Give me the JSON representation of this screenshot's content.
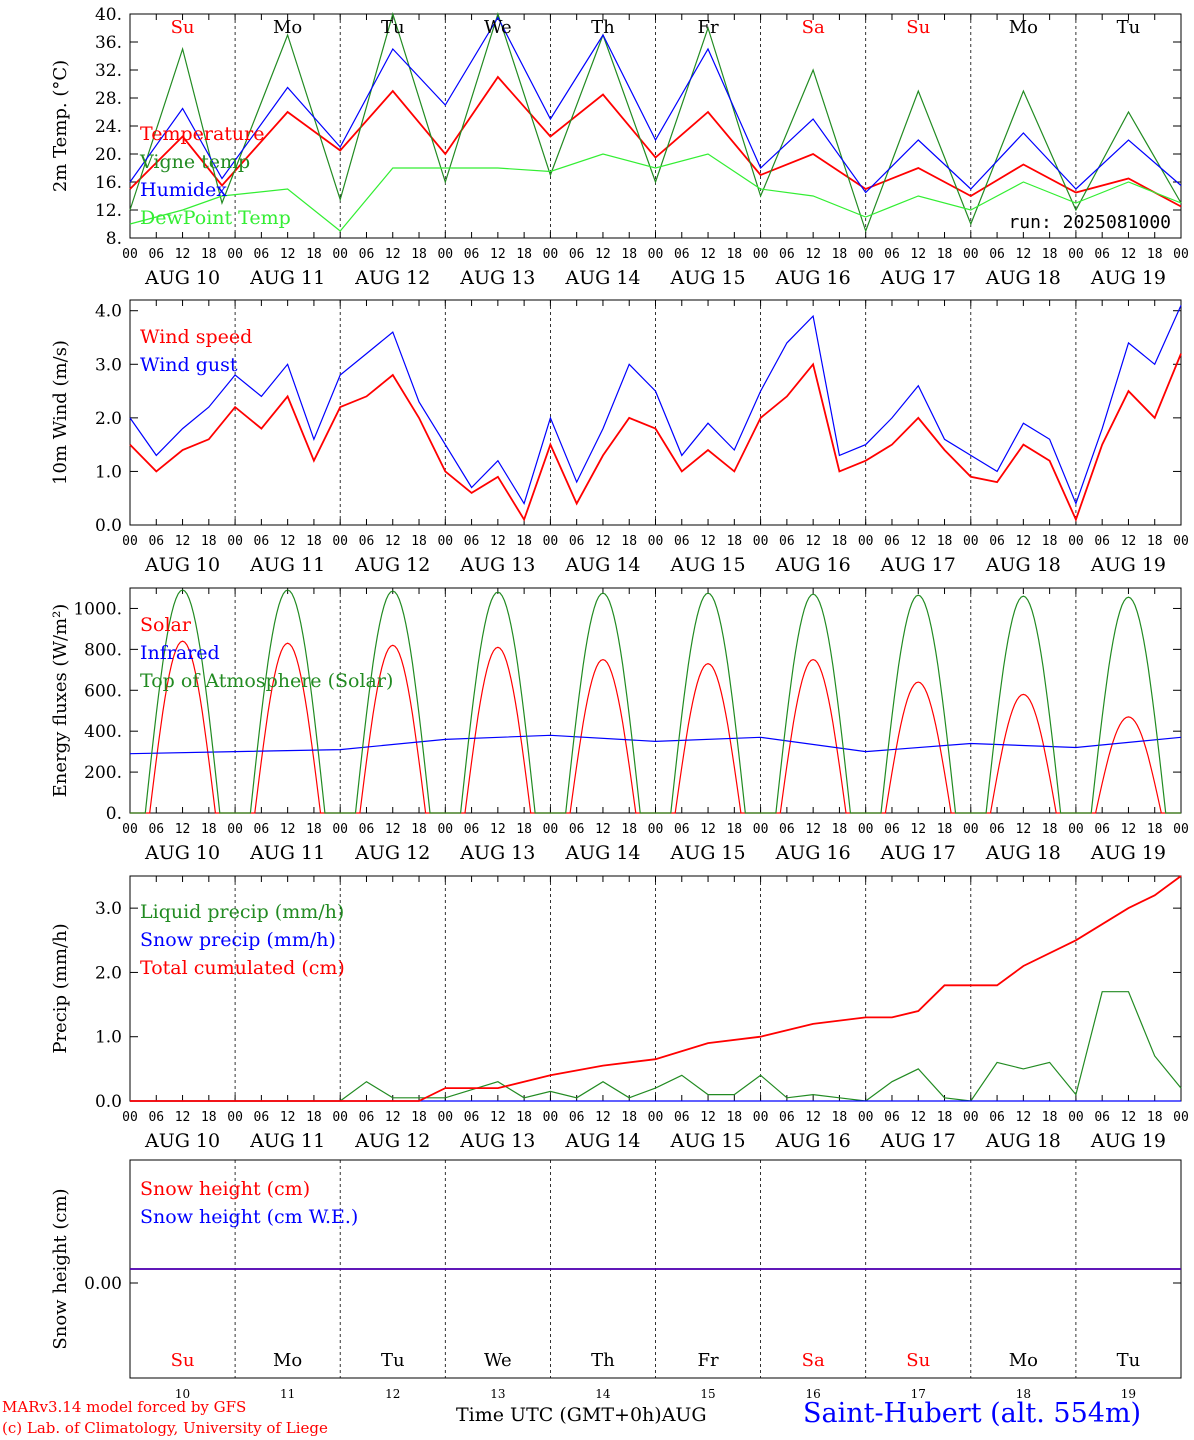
{
  "colors": {
    "red": "#ff0000",
    "green": "#228b22",
    "blue": "#0000ff",
    "lightgreen": "#33ee33",
    "black": "#000000"
  },
  "footer": {
    "credit1": "MARv3.14 model forced by GFS",
    "credit2": "(c) Lab. of Climatology, University of Liege",
    "xlabel": "Time UTC (GMT+0h)AUG",
    "station": "Saint-Hubert (alt. 554m)"
  },
  "chart_data": [
    {
      "type": "line",
      "ylabel": "2m Temp. (°C)",
      "ylim": [
        8,
        40
      ],
      "yticks": [
        "8.",
        "12.",
        "16.",
        "20.",
        "24.",
        "28.",
        "32.",
        "36.",
        "40."
      ],
      "yticks_vals": [
        8,
        12,
        16,
        20,
        24,
        28,
        32,
        36,
        40
      ],
      "run_label": "run: 2025081000",
      "weekdays": [
        "Su",
        "Mo",
        "Tu",
        "We",
        "Th",
        "Fr",
        "Sa",
        "Su",
        "Mo",
        "Tu"
      ],
      "weekday_colors": [
        "red",
        "black",
        "black",
        "black",
        "black",
        "black",
        "red",
        "red",
        "black",
        "black"
      ],
      "hour_ticks": [
        "00",
        "06",
        "12",
        "18"
      ],
      "day_labels": [
        "AUG 10",
        "AUG 11",
        "AUG 12",
        "AUG 13",
        "AUG 14",
        "AUG 15",
        "AUG 16",
        "AUG 17",
        "AUG 18",
        "AUG 19"
      ],
      "series": [
        {
          "name": "Temperature",
          "color": "red",
          "x": [
            0,
            12,
            21,
            36,
            48,
            60,
            72,
            84,
            96,
            108,
            120,
            132,
            144,
            156,
            168,
            180,
            192,
            204,
            216,
            228,
            240
          ],
          "values": [
            15,
            22.5,
            15.5,
            26,
            20.5,
            29,
            20,
            31,
            22.5,
            28.5,
            19.5,
            26,
            17,
            20,
            15,
            18,
            14,
            18.5,
            14.5,
            16.5,
            12.5
          ]
        },
        {
          "name": "Vigne temp",
          "color": "green",
          "x": [
            0,
            12,
            21,
            36,
            48,
            60,
            72,
            84,
            96,
            108,
            120,
            132,
            144,
            156,
            168,
            180,
            192,
            204,
            216,
            228,
            240
          ],
          "values": [
            12,
            35,
            13,
            37,
            13.5,
            40,
            16,
            40,
            17,
            37,
            16,
            38,
            14,
            32,
            9,
            29,
            10,
            29,
            12,
            26,
            13
          ]
        },
        {
          "name": "Humidex",
          "color": "blue",
          "x": [
            0,
            12,
            21,
            36,
            48,
            60,
            72,
            84,
            96,
            108,
            120,
            132,
            144,
            156,
            168,
            180,
            192,
            204,
            216,
            228,
            240
          ],
          "values": [
            16,
            26.5,
            16.5,
            29.5,
            21,
            35,
            27,
            39.5,
            25,
            37,
            22,
            35,
            18,
            25,
            14.5,
            22,
            15,
            23,
            15,
            22,
            15.5
          ]
        },
        {
          "name": "DewPoint Temp",
          "color": "lightgreen",
          "x": [
            0,
            12,
            21,
            36,
            48,
            60,
            72,
            84,
            96,
            108,
            120,
            132,
            144,
            156,
            168,
            180,
            192,
            204,
            216,
            228,
            240
          ],
          "values": [
            10,
            12,
            14,
            15,
            9,
            18,
            18,
            18,
            17.5,
            20,
            18,
            20,
            15,
            14,
            11,
            14,
            12,
            16,
            13,
            16,
            13
          ]
        }
      ]
    },
    {
      "type": "line",
      "ylabel": "10m Wind (m/s)",
      "ylim": [
        0,
        4.2
      ],
      "yticks": [
        "0.0",
        "1.0",
        "2.0",
        "3.0",
        "4.0"
      ],
      "yticks_vals": [
        0,
        1,
        2,
        3,
        4
      ],
      "hour_ticks": [
        "00",
        "06",
        "12",
        "18"
      ],
      "day_labels": [
        "AUG 10",
        "AUG 11",
        "AUG 12",
        "AUG 13",
        "AUG 14",
        "AUG 15",
        "AUG 16",
        "AUG 17",
        "AUG 18",
        "AUG 19"
      ],
      "series": [
        {
          "name": "Wind speed",
          "color": "red",
          "x": [
            0,
            6,
            12,
            18,
            24,
            30,
            36,
            42,
            48,
            54,
            60,
            66,
            72,
            78,
            84,
            90,
            96,
            102,
            108,
            114,
            120,
            126,
            132,
            138,
            144,
            150,
            156,
            162,
            168,
            174,
            180,
            186,
            192,
            198,
            204,
            210,
            216,
            222,
            228,
            234,
            240
          ],
          "values": [
            1.5,
            1.0,
            1.4,
            1.6,
            2.2,
            1.8,
            2.4,
            1.2,
            2.2,
            2.4,
            2.8,
            2.0,
            1.0,
            0.6,
            0.9,
            0.1,
            1.5,
            0.4,
            1.3,
            2.0,
            1.8,
            1.0,
            1.4,
            1.0,
            2.0,
            2.4,
            3.0,
            1.0,
            1.2,
            1.5,
            2.0,
            1.4,
            0.9,
            0.8,
            1.5,
            1.2,
            0.1,
            1.5,
            2.5,
            2.0,
            3.2
          ]
        },
        {
          "name": "Wind gust",
          "color": "blue",
          "x": [
            0,
            6,
            12,
            18,
            24,
            30,
            36,
            42,
            48,
            54,
            60,
            66,
            72,
            78,
            84,
            90,
            96,
            102,
            108,
            114,
            120,
            126,
            132,
            138,
            144,
            150,
            156,
            162,
            168,
            174,
            180,
            186,
            192,
            198,
            204,
            210,
            216,
            222,
            228,
            234,
            240
          ],
          "values": [
            2.0,
            1.3,
            1.8,
            2.2,
            2.8,
            2.4,
            3.0,
            1.6,
            2.8,
            3.2,
            3.6,
            2.3,
            1.5,
            0.7,
            1.2,
            0.4,
            2.0,
            0.8,
            1.8,
            3.0,
            2.5,
            1.3,
            1.9,
            1.4,
            2.5,
            3.4,
            3.9,
            1.3,
            1.5,
            2.0,
            2.6,
            1.6,
            1.3,
            1.0,
            1.9,
            1.6,
            0.4,
            1.8,
            3.4,
            3.0,
            4.1
          ]
        }
      ]
    },
    {
      "type": "line",
      "ylabel": "Energy fluxes (W/m²)",
      "ylim": [
        0,
        1100
      ],
      "yticks": [
        "0.",
        "200.",
        "400.",
        "600.",
        "800.",
        "1000."
      ],
      "yticks_vals": [
        0,
        200,
        400,
        600,
        800,
        1000
      ],
      "hour_ticks": [
        "00",
        "06",
        "12",
        "18"
      ],
      "day_labels": [
        "AUG 10",
        "AUG 11",
        "AUG 12",
        "AUG 13",
        "AUG 14",
        "AUG 15",
        "AUG 16",
        "AUG 17",
        "AUG 18",
        "AUG 19"
      ],
      "series": [
        {
          "name": "Solar",
          "color": "red",
          "daily_peak": [
            840,
            830,
            820,
            810,
            750,
            730,
            750,
            640,
            580,
            470
          ]
        },
        {
          "name": "Infrared",
          "color": "blue",
          "x": [
            0,
            24,
            48,
            72,
            96,
            120,
            144,
            168,
            192,
            216,
            240
          ],
          "values": [
            290,
            300,
            310,
            360,
            380,
            350,
            370,
            300,
            340,
            320,
            370
          ]
        },
        {
          "name": "Top of Atmosphere (Solar)",
          "color": "green",
          "daily_peak": [
            1090,
            1090,
            1085,
            1080,
            1075,
            1075,
            1070,
            1065,
            1060,
            1055
          ]
        }
      ]
    },
    {
      "type": "line",
      "ylabel": "Precip (mm/h)",
      "ylim": [
        0,
        3.5
      ],
      "yticks": [
        "0.0",
        "1.0",
        "2.0",
        "3.0"
      ],
      "yticks_vals": [
        0,
        1,
        2,
        3
      ],
      "hour_ticks": [
        "00",
        "06",
        "12",
        "18"
      ],
      "day_labels": [
        "AUG 10",
        "AUG 11",
        "AUG 12",
        "AUG 13",
        "AUG 14",
        "AUG 15",
        "AUG 16",
        "AUG 17",
        "AUG 18",
        "AUG 19"
      ],
      "series": [
        {
          "name": "Liquid precip (mm/h)",
          "color": "green",
          "x": [
            0,
            48,
            54,
            60,
            66,
            72,
            84,
            90,
            96,
            102,
            108,
            114,
            120,
            126,
            132,
            138,
            144,
            150,
            156,
            162,
            168,
            174,
            180,
            186,
            192,
            198,
            204,
            210,
            216,
            222,
            228,
            234,
            240
          ],
          "values": [
            0,
            0,
            0.3,
            0.05,
            0.05,
            0.05,
            0.3,
            0.05,
            0.15,
            0.05,
            0.3,
            0.05,
            0.2,
            0.4,
            0.1,
            0.1,
            0.4,
            0.05,
            0.1,
            0.05,
            0,
            0.3,
            0.5,
            0.05,
            0,
            0.6,
            0.5,
            0.6,
            0.1,
            1.7,
            1.7,
            0.7,
            0.2
          ]
        },
        {
          "name": "Snow precip (mm/h)",
          "color": "blue",
          "x": [
            0,
            240
          ],
          "values": [
            0,
            0
          ]
        },
        {
          "name": "Total cumulated (cm)",
          "color": "red",
          "x": [
            0,
            66,
            72,
            84,
            96,
            108,
            120,
            132,
            144,
            156,
            168,
            174,
            180,
            186,
            192,
            198,
            204,
            216,
            228,
            234,
            240
          ],
          "values": [
            0,
            0,
            0.2,
            0.2,
            0.4,
            0.55,
            0.65,
            0.9,
            1.0,
            1.2,
            1.3,
            1.3,
            1.4,
            1.8,
            1.8,
            1.8,
            2.1,
            2.5,
            3.0,
            3.2,
            3.5
          ]
        }
      ]
    },
    {
      "type": "line",
      "ylabel": "Snow height (cm)",
      "yticks": [
        "0.00"
      ],
      "weekdays": [
        "Su",
        "Mo",
        "Tu",
        "We",
        "Th",
        "Fr",
        "Sa",
        "Su",
        "Mo",
        "Tu"
      ],
      "weekday_colors": [
        "red",
        "black",
        "black",
        "black",
        "black",
        "black",
        "red",
        "red",
        "black",
        "black"
      ],
      "day_numbers": [
        "10",
        "11",
        "12",
        "13",
        "14",
        "15",
        "16",
        "17",
        "18",
        "19"
      ],
      "series": [
        {
          "name": "Snow height (cm)",
          "color": "red",
          "x": [
            0,
            240
          ],
          "values": [
            0,
            0
          ]
        },
        {
          "name": "Snow height (cm W.E.)",
          "color": "blue",
          "x": [
            0,
            240
          ],
          "values": [
            0,
            0
          ]
        }
      ]
    }
  ]
}
